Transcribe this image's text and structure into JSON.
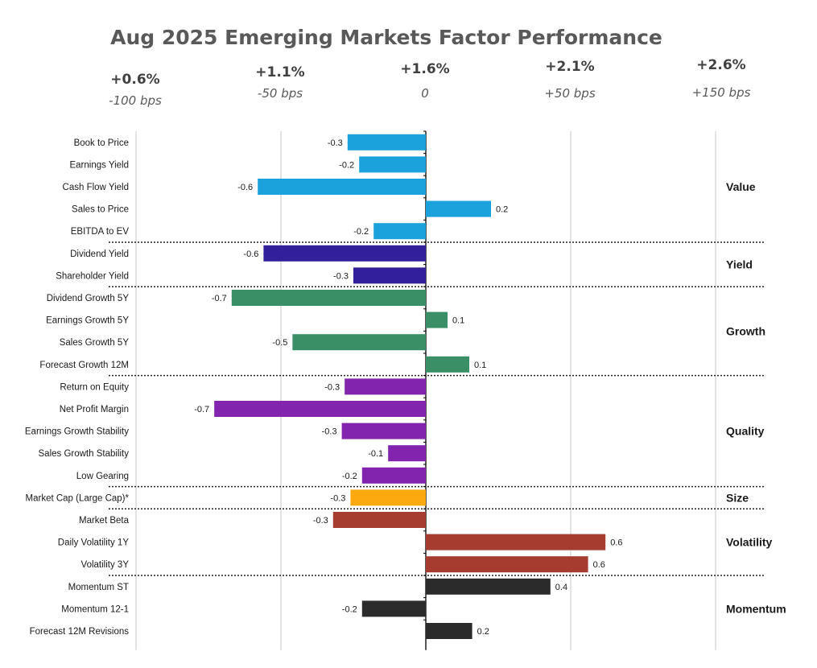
{
  "chart_data": {
    "type": "bar",
    "orientation": "horizontal",
    "title": "Aug 2025 Emerging Markets Factor Performance",
    "scenario_headers": [
      {
        "performance": "+0.6%",
        "scenario": "-100 bps"
      },
      {
        "performance": "+1.1%",
        "scenario": "-50 bps"
      },
      {
        "performance": "+1.6%",
        "scenario": "0"
      },
      {
        "performance": "+2.1%",
        "scenario": "+50 bps"
      },
      {
        "performance": "+2.6%",
        "scenario": "+150 bps"
      }
    ],
    "xlim": [
      -1.0,
      1.0
    ],
    "grid_step": 0.5,
    "groups": [
      {
        "name": "Value",
        "color": "#1BA1DB",
        "items": [
          {
            "label": "Book to Price",
            "value": -0.27,
            "text": "-0.3"
          },
          {
            "label": "Earnings Yield",
            "value": -0.23,
            "text": "-0.2"
          },
          {
            "label": "Cash Flow Yield",
            "value": -0.58,
            "text": "-0.6"
          },
          {
            "label": "Sales to Price",
            "value": 0.225,
            "text": "0.2"
          },
          {
            "label": "EBITDA to EV",
            "value": -0.18,
            "text": "-0.2"
          }
        ]
      },
      {
        "name": "Yield",
        "color": "#31209A",
        "items": [
          {
            "label": "Dividend Yield",
            "value": -0.56,
            "text": "-0.6"
          },
          {
            "label": "Shareholder Yield",
            "value": -0.25,
            "text": "-0.3"
          }
        ]
      },
      {
        "name": "Growth",
        "color": "#3A8F66",
        "items": [
          {
            "label": "Dividend Growth 5Y",
            "value": -0.67,
            "text": "-0.7"
          },
          {
            "label": "Earnings Growth 5Y",
            "value": 0.075,
            "text": "0.1"
          },
          {
            "label": "Sales Growth 5Y",
            "value": -0.46,
            "text": "-0.5"
          },
          {
            "label": "Forecast Growth 12M",
            "value": 0.15,
            "text": "0.1"
          }
        ]
      },
      {
        "name": "Quality",
        "color": "#8224AE",
        "items": [
          {
            "label": "Return on Equity",
            "value": -0.28,
            "text": "-0.3"
          },
          {
            "label": "Net Profit Margin",
            "value": -0.73,
            "text": "-0.7"
          },
          {
            "label": "Earnings Growth Stability",
            "value": -0.29,
            "text": "-0.3"
          },
          {
            "label": "Sales Growth Stability",
            "value": -0.13,
            "text": "-0.1"
          },
          {
            "label": "Low Gearing",
            "value": -0.22,
            "text": "-0.2"
          }
        ]
      },
      {
        "name": "Size",
        "color": "#FBA90F",
        "items": [
          {
            "label": "Market Cap (Large Cap)*",
            "value": -0.26,
            "text": "-0.3"
          }
        ]
      },
      {
        "name": "Volatility",
        "color": "#A63B30",
        "items": [
          {
            "label": "Market Beta",
            "value": -0.32,
            "text": "-0.3"
          },
          {
            "label": "Daily Volatility 1Y",
            "value": 0.62,
            "text": "0.6"
          },
          {
            "label": "Volatility 3Y",
            "value": 0.56,
            "text": "0.6"
          }
        ]
      },
      {
        "name": "Momentum",
        "color": "#2B2B2B",
        "items": [
          {
            "label": "Momentum ST",
            "value": 0.43,
            "text": "0.4"
          },
          {
            "label": "Momentum 12-1",
            "value": -0.22,
            "text": "-0.2"
          },
          {
            "label": "Forecast 12M Revisions",
            "value": 0.16,
            "text": "0.2"
          }
        ]
      }
    ]
  }
}
